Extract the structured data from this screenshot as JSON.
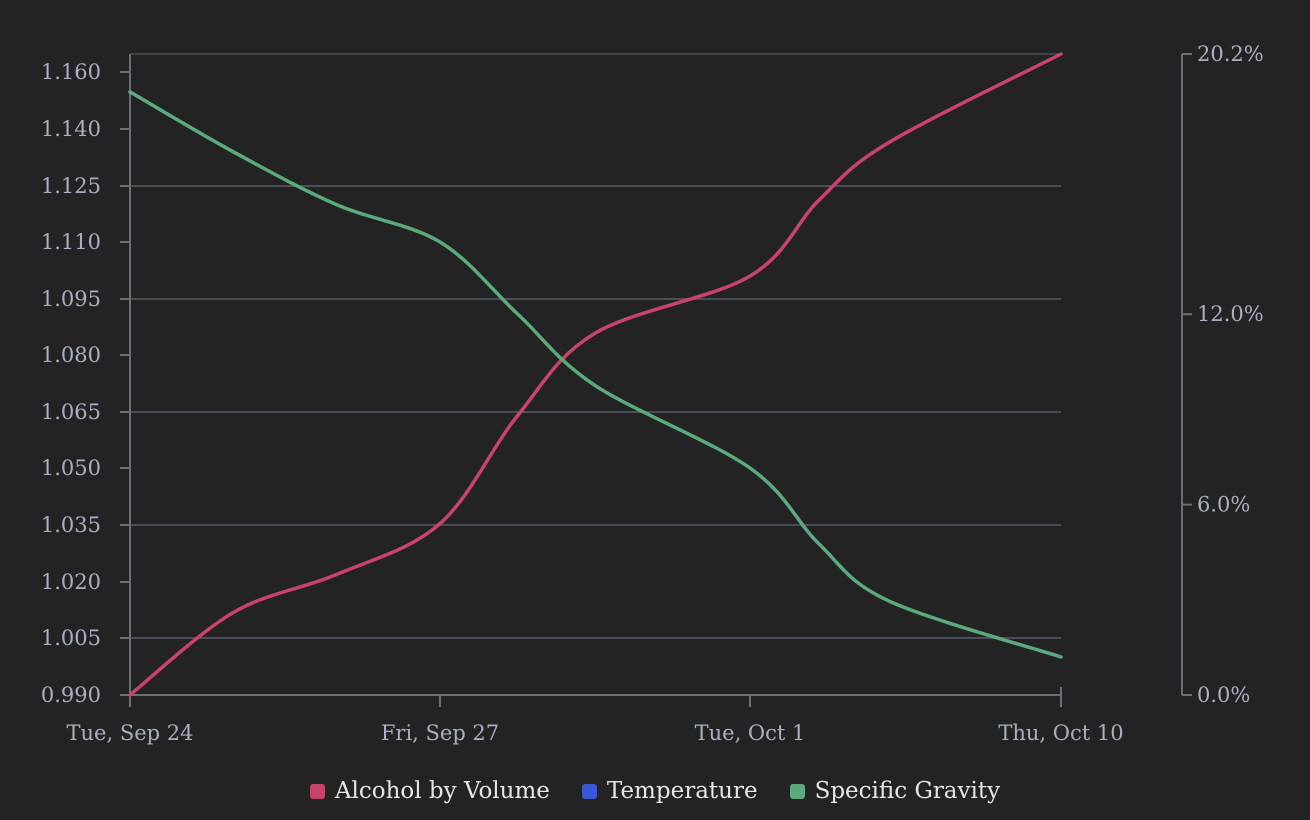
{
  "colors": {
    "background": "#232323",
    "grid": "#4a4e5a",
    "axis": "#6b6f7a",
    "tick_label": "#a9b0c4",
    "legend_text": "#e6e6e6"
  },
  "chart_data": {
    "type": "line",
    "x": [
      "2024-09-24",
      "2024-09-27",
      "2024-10-01",
      "2024-10-10"
    ],
    "x_tick_labels": [
      "Tue, Sep 24",
      "Fri, Sep 27",
      "Tue, Oct 1",
      "Thu, Oct 10"
    ],
    "y_left": {
      "ticks": [
        1.16,
        1.14,
        1.125,
        1.11,
        1.095,
        1.08,
        1.065,
        1.05,
        1.035,
        1.02,
        1.005,
        0.99
      ],
      "tick_labels": [
        "1.160",
        "1.140",
        "1.125",
        "1.110",
        "1.095",
        "1.080",
        "1.065",
        "1.050",
        "1.035",
        "1.020",
        "1.005",
        "0.990"
      ]
    },
    "y_right": {
      "ticks": [
        20.2,
        12.0,
        6.0,
        0.0
      ],
      "tick_labels": [
        "20.2%",
        "12.0%",
        "6.0%",
        "0.0%"
      ],
      "range": [
        0,
        20.2
      ]
    },
    "grid": true,
    "legend_position": "bottom",
    "series": [
      {
        "name": "Alcohol by Volume",
        "color": "#c9436a",
        "axis": "right",
        "unit": "%",
        "points": [
          [
            "2024-09-24",
            0.0
          ],
          [
            "2024-09-25",
            2.6
          ],
          [
            "2024-09-26",
            3.8
          ],
          [
            "2024-09-27",
            5.4
          ],
          [
            "2024-09-28",
            8.8
          ],
          [
            "2024-09-29",
            11.4
          ],
          [
            "2024-10-01",
            13.2
          ],
          [
            "2024-10-03",
            15.6
          ],
          [
            "2024-10-05",
            17.4
          ],
          [
            "2024-10-10",
            20.2
          ]
        ]
      },
      {
        "name": "Temperature",
        "color": "#3a57d6",
        "axis": "right",
        "points": []
      },
      {
        "name": "Specific Gravity",
        "color": "#5aaa7e",
        "axis": "left",
        "points": [
          [
            "2024-09-24",
            1.153
          ],
          [
            "2024-09-25",
            1.134
          ],
          [
            "2024-09-26",
            1.12
          ],
          [
            "2024-09-27",
            1.11
          ],
          [
            "2024-09-28",
            1.091
          ],
          [
            "2024-09-29",
            1.072
          ],
          [
            "2024-10-01",
            1.05
          ],
          [
            "2024-10-03",
            1.03
          ],
          [
            "2024-10-05",
            1.015
          ],
          [
            "2024-10-10",
            1.0
          ]
        ]
      }
    ]
  }
}
